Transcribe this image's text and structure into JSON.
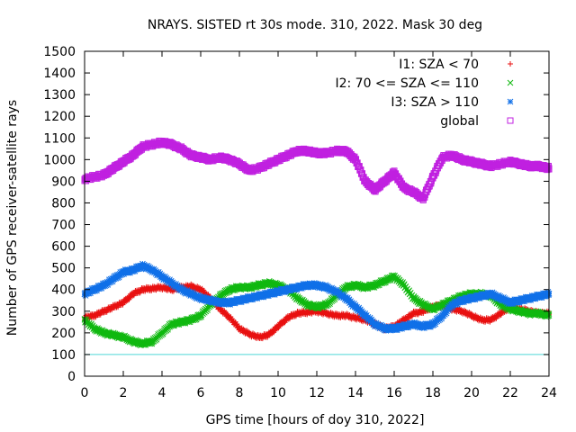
{
  "chart_data": {
    "type": "scatter",
    "title": "NRAYS. SISTED rt 30s mode. 310, 2022. Mask 30 deg",
    "xlabel": "GPS time [hours of doy 310, 2022]",
    "ylabel": "Number of GPS receiver-satellite rays",
    "xlim": [
      0,
      24
    ],
    "ylim": [
      0,
      1500
    ],
    "xticks": [
      0,
      2,
      4,
      6,
      8,
      10,
      12,
      14,
      16,
      18,
      20,
      22,
      24
    ],
    "yticks": [
      0,
      100,
      200,
      300,
      400,
      500,
      600,
      700,
      800,
      900,
      1000,
      1100,
      1200,
      1300,
      1400,
      1500
    ],
    "threshold_line": {
      "y": 100,
      "color": "#4fd8d8"
    },
    "legend_position": "top-right",
    "series": [
      {
        "name": "I1: SZA < 70",
        "marker": "plus",
        "color": "#e81010",
        "x": [
          0,
          0.5,
          1,
          1.5,
          2,
          2.5,
          3,
          3.5,
          4,
          4.5,
          5,
          5.5,
          6,
          6.5,
          7,
          7.5,
          8,
          8.5,
          9,
          9.5,
          10,
          10.5,
          11,
          11.5,
          12,
          12.5,
          13,
          13.5,
          14,
          14.5,
          15,
          15.5,
          16,
          16.5,
          17,
          17.5,
          18,
          18.5,
          19,
          19.5,
          20,
          20.5,
          21,
          21.5,
          22,
          22.5,
          23,
          23.5,
          24
        ],
        "values": [
          270,
          280,
          300,
          320,
          340,
          380,
          400,
          405,
          410,
          400,
          410,
          415,
          400,
          360,
          310,
          270,
          220,
          195,
          180,
          190,
          230,
          270,
          290,
          295,
          300,
          290,
          280,
          280,
          270,
          260,
          240,
          220,
          230,
          260,
          290,
          300,
          320,
          330,
          310,
          300,
          280,
          260,
          260,
          290,
          320,
          310,
          300,
          290,
          290
        ]
      },
      {
        "name": "I2: 70 <= SZA <= 110",
        "marker": "cross",
        "color": "#10b810",
        "x": [
          0,
          0.5,
          1,
          1.5,
          2,
          2.5,
          3,
          3.5,
          4,
          4.5,
          5,
          5.5,
          6,
          6.5,
          7,
          7.5,
          8,
          8.5,
          9,
          9.5,
          10,
          10.5,
          11,
          11.5,
          12,
          12.5,
          13,
          13.5,
          14,
          14.5,
          15,
          15.5,
          16,
          16.5,
          17,
          17.5,
          18,
          18.5,
          19,
          19.5,
          20,
          20.5,
          21,
          21.5,
          22,
          22.5,
          23,
          23.5,
          24
        ],
        "values": [
          260,
          220,
          200,
          190,
          180,
          160,
          150,
          160,
          200,
          240,
          250,
          260,
          280,
          330,
          370,
          400,
          410,
          410,
          420,
          430,
          420,
          400,
          360,
          330,
          320,
          330,
          370,
          410,
          420,
          410,
          420,
          440,
          460,
          420,
          360,
          330,
          310,
          330,
          350,
          370,
          380,
          380,
          370,
          330,
          310,
          300,
          290,
          290,
          280
        ]
      },
      {
        "name": "I3: SZA > 110",
        "marker": "star",
        "color": "#1070e8",
        "x": [
          0,
          0.5,
          1,
          1.5,
          2,
          2.5,
          3,
          3.5,
          4,
          4.5,
          5,
          5.5,
          6,
          6.5,
          7,
          7.5,
          8,
          8.5,
          9,
          9.5,
          10,
          10.5,
          11,
          11.5,
          12,
          12.5,
          13,
          13.5,
          14,
          14.5,
          15,
          15.5,
          16,
          16.5,
          17,
          17.5,
          18,
          18.5,
          19,
          19.5,
          20,
          20.5,
          21,
          21.5,
          22,
          22.5,
          23,
          23.5,
          24
        ],
        "values": [
          380,
          400,
          420,
          450,
          480,
          490,
          510,
          490,
          460,
          430,
          400,
          380,
          360,
          350,
          340,
          340,
          350,
          360,
          370,
          380,
          390,
          400,
          410,
          420,
          420,
          410,
          390,
          360,
          320,
          280,
          240,
          220,
          220,
          230,
          240,
          230,
          240,
          280,
          330,
          350,
          360,
          370,
          380,
          360,
          340,
          350,
          360,
          370,
          380
        ]
      },
      {
        "name": "global",
        "marker": "square",
        "color": "#c020e0",
        "x": [
          0,
          0.5,
          1,
          1.5,
          2,
          2.5,
          3,
          3.5,
          4,
          4.5,
          5,
          5.5,
          6,
          6.5,
          7,
          7.5,
          8,
          8.5,
          9,
          9.5,
          10,
          10.5,
          11,
          11.5,
          12,
          12.5,
          13,
          13.5,
          14,
          14.5,
          15,
          15.5,
          16,
          16.5,
          17,
          17.5,
          18,
          18.5,
          19,
          19.5,
          20,
          20.5,
          21,
          21.5,
          22,
          22.5,
          23,
          23.5,
          24
        ],
        "values": [
          910,
          920,
          930,
          960,
          990,
          1020,
          1060,
          1070,
          1080,
          1070,
          1050,
          1020,
          1010,
          1000,
          1010,
          1000,
          980,
          950,
          960,
          980,
          1000,
          1020,
          1040,
          1040,
          1030,
          1030,
          1040,
          1040,
          1000,
          900,
          860,
          900,
          940,
          870,
          850,
          820,
          920,
          1010,
          1020,
          1000,
          990,
          980,
          970,
          980,
          990,
          980,
          970,
          970,
          960
        ]
      }
    ]
  }
}
